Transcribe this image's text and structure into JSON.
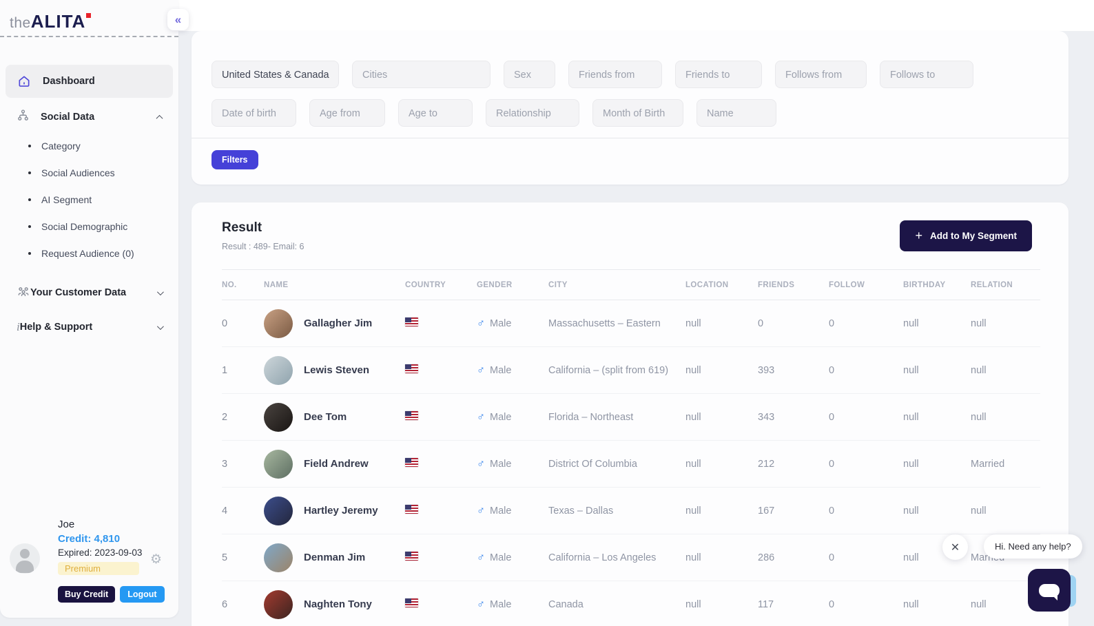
{
  "brand": {
    "prefix": "the",
    "name": "ALITA",
    "dot_color": "#e8232a"
  },
  "sidebar": {
    "dashboard": {
      "label": "Dashboard"
    },
    "social_data": {
      "label": "Social Data",
      "expanded": true,
      "items": [
        {
          "label": "Category"
        },
        {
          "label": "Social Audiences"
        },
        {
          "label": "AI Segment"
        },
        {
          "label": "Social Demographic"
        },
        {
          "label": "Request Audience (0)"
        }
      ]
    },
    "customer_data": {
      "label": "Your Customer Data"
    },
    "help": {
      "label": "Help & Support"
    }
  },
  "user": {
    "name": "Joe",
    "credit": "Credit: 4,810",
    "expired": "Expired: 2023-09-03",
    "plan": "Premium",
    "buy_credit_label": "Buy Credit",
    "logout_label": "Logout",
    "credit_color": "#2f96ee",
    "plan_bg": "#fbf3cf",
    "plan_color": "#dfaf3f"
  },
  "filters": {
    "button_label": "Filters",
    "button_color": "#4541d8",
    "row1": [
      {
        "label": "United States & Canada",
        "filled": true
      },
      {
        "label": "Cities",
        "filled": false
      },
      {
        "label": "Sex",
        "filled": false
      },
      {
        "label": "Friends from",
        "filled": false
      },
      {
        "label": "Friends to",
        "filled": false
      },
      {
        "label": "Follows from",
        "filled": false
      },
      {
        "label": "Follows to",
        "filled": false
      }
    ],
    "row2": [
      {
        "label": "Date of birth",
        "filled": false
      },
      {
        "label": "Age from",
        "filled": false
      },
      {
        "label": "Age to",
        "filled": false
      },
      {
        "label": "Relationship",
        "filled": false
      },
      {
        "label": "Month of Birth",
        "filled": false
      },
      {
        "label": "Name",
        "filled": false
      }
    ]
  },
  "result": {
    "title": "Result",
    "subtitle": "Result : 489- Email: 6",
    "segment_button_label": "Add to My Segment",
    "segment_button_color": "#1c1547"
  },
  "table": {
    "headers": [
      "NO.",
      "NAME",
      "COUNTRY",
      "GENDER",
      "CITY",
      "LOCATION",
      "FRIENDS",
      "FOLLOW",
      "BIRTHDAY",
      "RELATION"
    ],
    "rows": [
      {
        "no": "0",
        "name": "Gallagher Jim",
        "country": "US",
        "gender": "Male",
        "city": "Massachusetts – Eastern",
        "location": "null",
        "friends": "0",
        "follow": "0",
        "birthday": "null",
        "relation": "null",
        "avatar_gradient": [
          "#c9a184",
          "#7a5a43"
        ]
      },
      {
        "no": "1",
        "name": "Lewis Steven",
        "country": "US",
        "gender": "Male",
        "city": "California – (split from 619)",
        "location": "null",
        "friends": "393",
        "follow": "0",
        "birthday": "null",
        "relation": "null",
        "avatar_gradient": [
          "#cdd6da",
          "#8fa3ad"
        ]
      },
      {
        "no": "2",
        "name": "Dee Tom",
        "country": "US",
        "gender": "Male",
        "city": "Florida – Northeast",
        "location": "null",
        "friends": "343",
        "follow": "0",
        "birthday": "null",
        "relation": "null",
        "avatar_gradient": [
          "#4a4440",
          "#191513"
        ]
      },
      {
        "no": "3",
        "name": "Field Andrew",
        "country": "US",
        "gender": "Male",
        "city": "District Of Columbia",
        "location": "null",
        "friends": "212",
        "follow": "0",
        "birthday": "null",
        "relation": "Married",
        "avatar_gradient": [
          "#a8b8a0",
          "#5d6e62"
        ]
      },
      {
        "no": "4",
        "name": "Hartley Jeremy",
        "country": "US",
        "gender": "Male",
        "city": "Texas – Dallas",
        "location": "null",
        "friends": "167",
        "follow": "0",
        "birthday": "null",
        "relation": "null",
        "avatar_gradient": [
          "#3c4e8c",
          "#23263c"
        ]
      },
      {
        "no": "5",
        "name": "Denman Jim",
        "country": "US",
        "gender": "Male",
        "city": "California – Los Angeles",
        "location": "null",
        "friends": "286",
        "follow": "0",
        "birthday": "null",
        "relation": "Married",
        "avatar_gradient": [
          "#7fa8c9",
          "#9c8468"
        ]
      },
      {
        "no": "6",
        "name": "Naghten Tony",
        "country": "US",
        "gender": "Male",
        "city": "Canada",
        "location": "null",
        "friends": "117",
        "follow": "0",
        "birthday": "null",
        "relation": "null",
        "avatar_gradient": [
          "#a33b30",
          "#3c2420"
        ]
      }
    ]
  },
  "chat": {
    "greeting": "Hi. Need any help?",
    "close_icon": "✕",
    "button_color": "#1d1547"
  }
}
